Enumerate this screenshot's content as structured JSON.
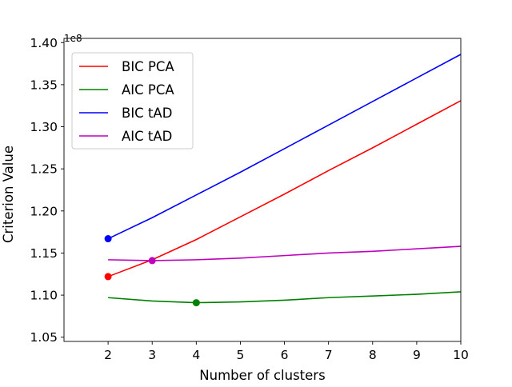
{
  "chart_data": {
    "type": "line",
    "xlabel": "Number of clusters",
    "ylabel": "Criterion Value",
    "y_offset_text": "1e8",
    "xlim": [
      1,
      10
    ],
    "ylim": [
      1.045,
      1.405
    ],
    "x_ticks": [
      2,
      3,
      4,
      5,
      6,
      7,
      8,
      9,
      10
    ],
    "y_ticks": [
      1.05,
      1.1,
      1.15,
      1.2,
      1.25,
      1.3,
      1.35,
      1.4
    ],
    "y_tick_labels": [
      "1.05",
      "1.10",
      "1.15",
      "1.20",
      "1.25",
      "1.30",
      "1.35",
      "1.40"
    ],
    "grid": false,
    "legend_position": "upper-left",
    "x": [
      2,
      3,
      4,
      5,
      6,
      7,
      8,
      9,
      10
    ],
    "series": [
      {
        "name": "BIC PCA",
        "color": "#ff0000",
        "values": [
          1.122,
          1.142,
          1.166,
          1.193,
          1.22,
          1.248,
          1.275,
          1.303,
          1.331
        ],
        "marker": {
          "x": 2,
          "y": 1.122
        }
      },
      {
        "name": "AIC PCA",
        "color": "#008000",
        "values": [
          1.097,
          1.093,
          1.091,
          1.092,
          1.094,
          1.097,
          1.099,
          1.101,
          1.104
        ],
        "marker": {
          "x": 4,
          "y": 1.091
        }
      },
      {
        "name": "BIC tAD",
        "color": "#0000ff",
        "values": [
          1.167,
          1.192,
          1.219,
          1.246,
          1.274,
          1.302,
          1.33,
          1.358,
          1.386
        ],
        "marker": {
          "x": 2,
          "y": 1.167
        }
      },
      {
        "name": "AIC tAD",
        "color": "#bf00bf",
        "values": [
          1.142,
          1.141,
          1.142,
          1.144,
          1.147,
          1.15,
          1.152,
          1.155,
          1.158
        ],
        "marker": {
          "x": 3,
          "y": 1.141
        }
      }
    ]
  }
}
